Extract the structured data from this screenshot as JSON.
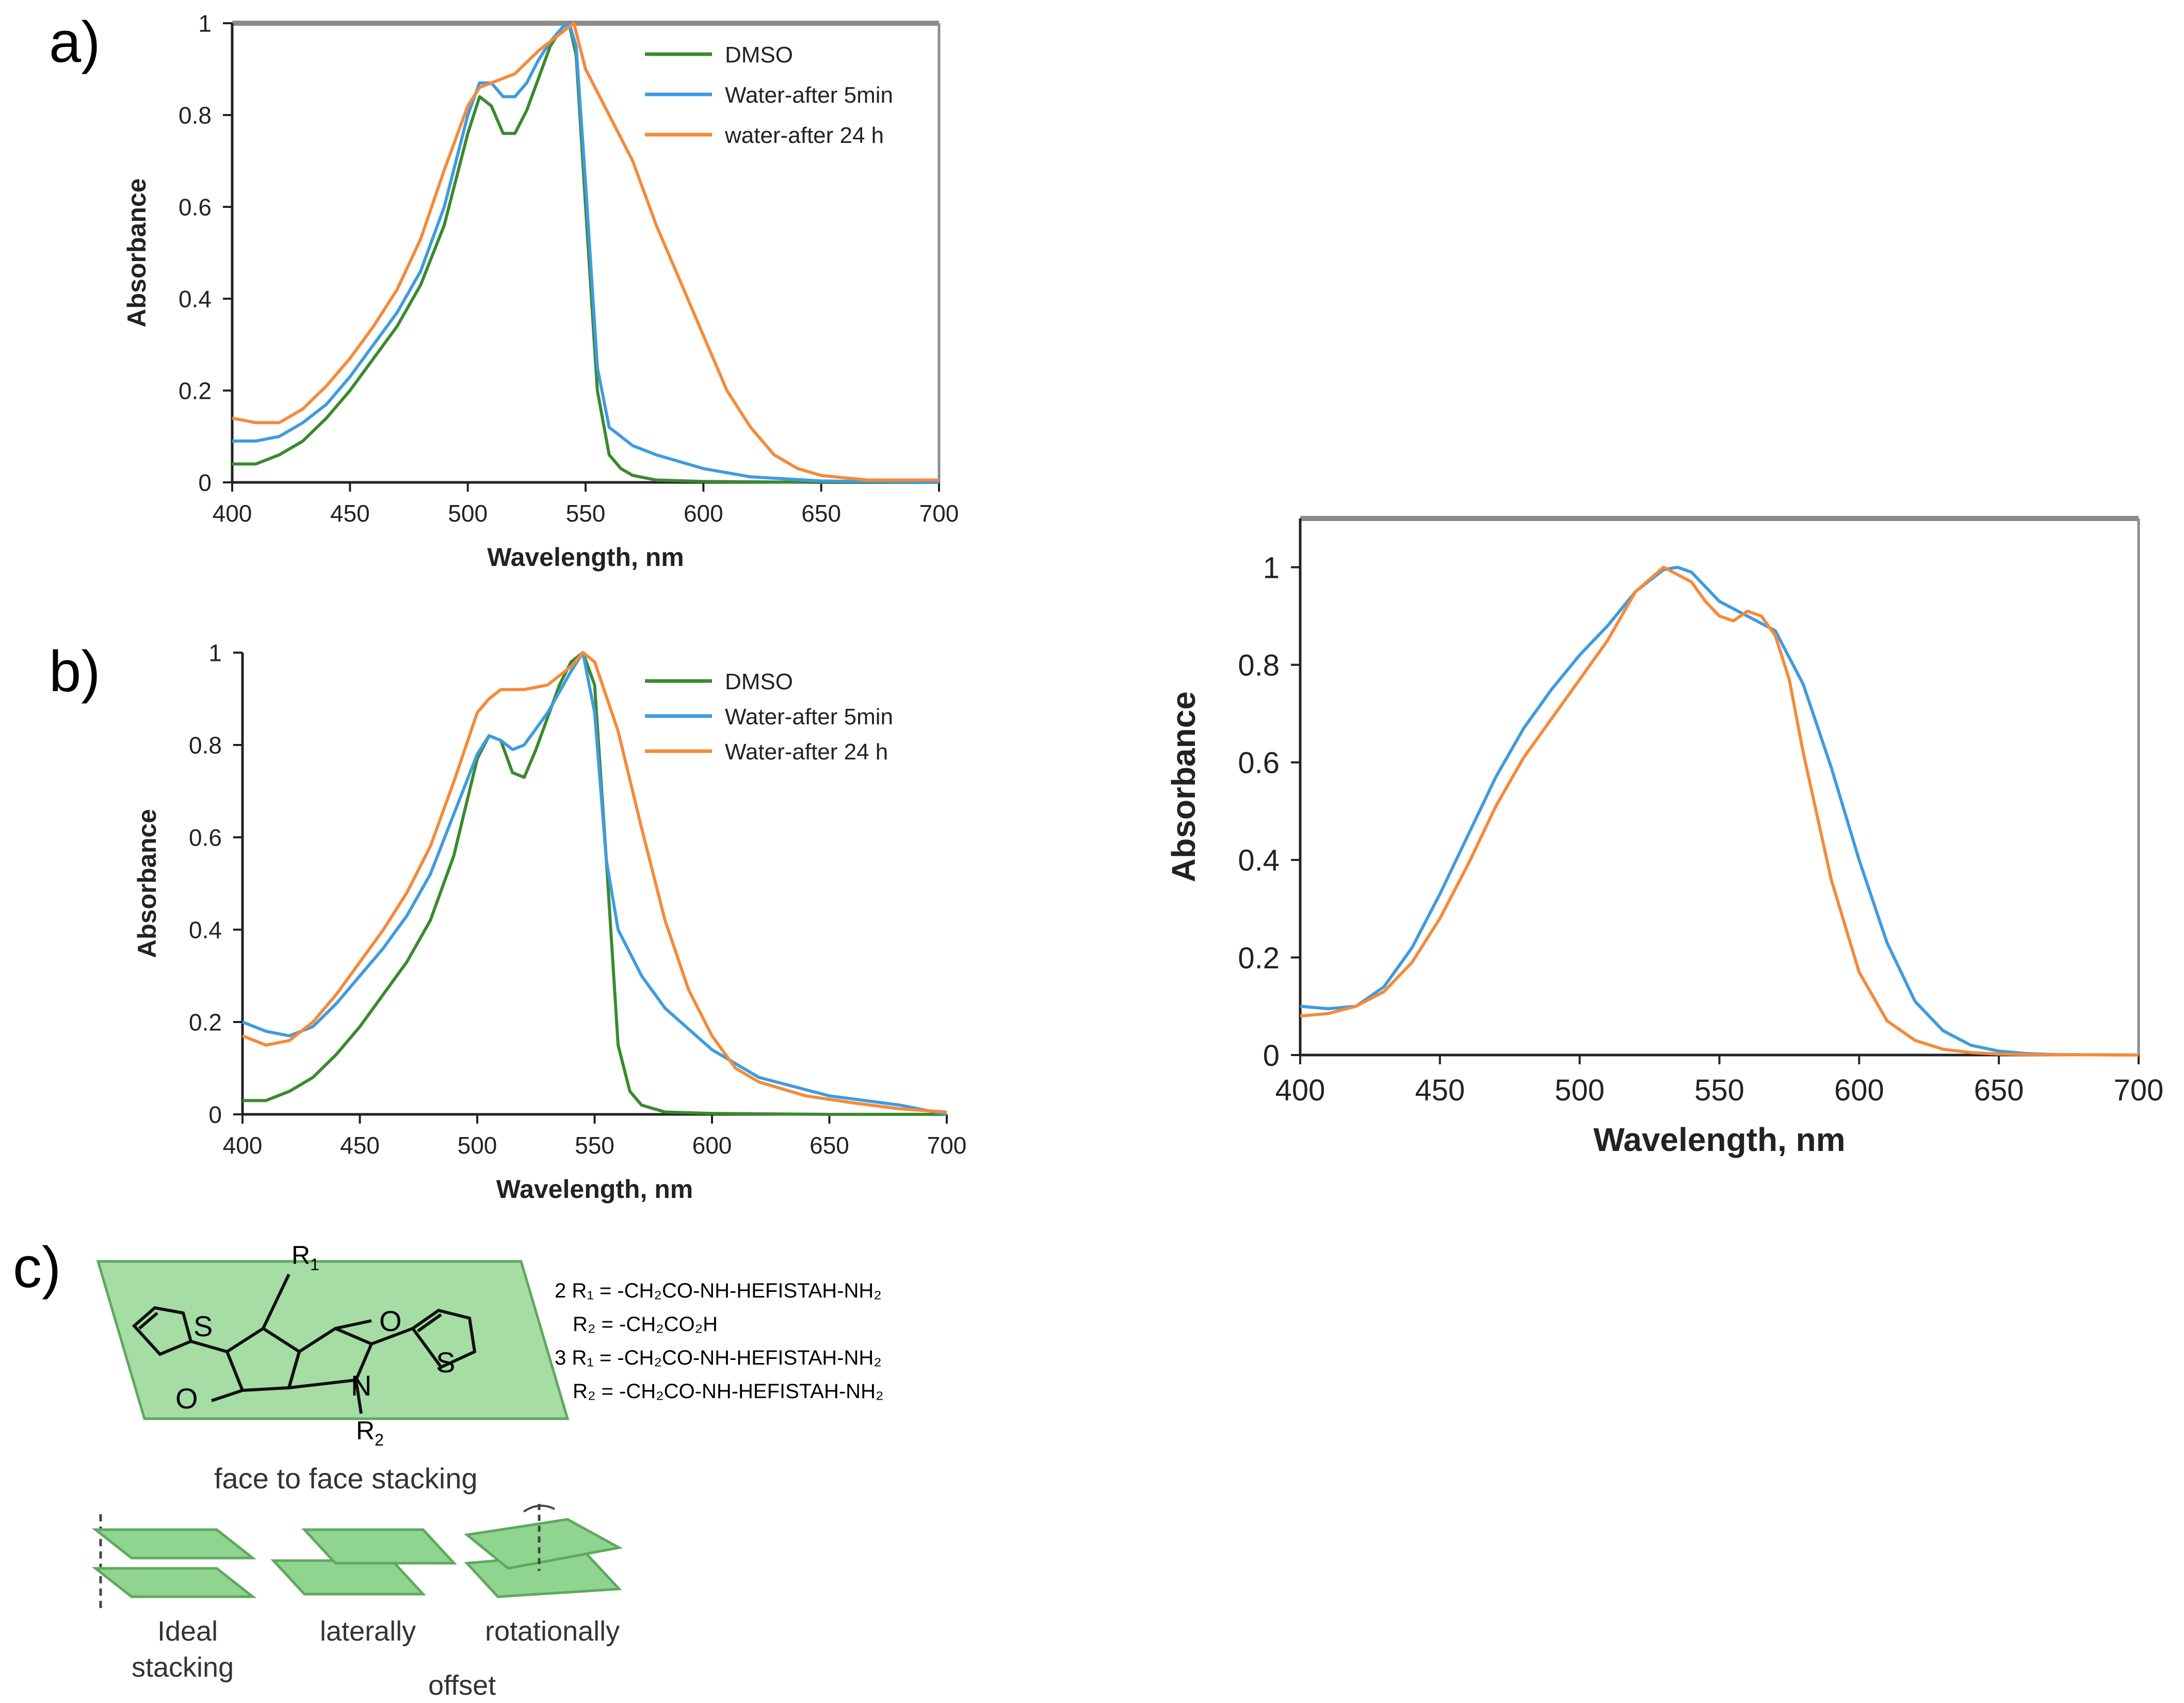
{
  "panel_labels": {
    "a": "a)",
    "b": "b)",
    "c": "c)"
  },
  "colors": {
    "dmso": "#3a8a2e",
    "water5": "#3f9be0",
    "water24": "#f58a3a",
    "frame": "#8c8c8c",
    "plane": "#8fd48f",
    "plane_edge": "#5fa85f"
  },
  "chart_data": [
    {
      "id": "a",
      "type": "line",
      "xlabel": "Wavelength, nm",
      "ylabel": "Absorbance",
      "xlim": [
        400,
        700
      ],
      "ylim": [
        0,
        1
      ],
      "xticks": [
        "400",
        "450",
        "500",
        "550",
        "600",
        "650",
        "700"
      ],
      "yticks": [
        "0",
        "0.2",
        "0.4",
        "0.6",
        "0.8",
        "1"
      ],
      "legend": "top-right",
      "series": [
        {
          "name": "DMSO",
          "color": "dmso",
          "x": [
            400,
            410,
            420,
            430,
            440,
            450,
            460,
            470,
            480,
            490,
            500,
            505,
            510,
            515,
            520,
            525,
            530,
            535,
            540,
            543,
            546,
            550,
            555,
            560,
            565,
            570,
            580,
            600,
            650,
            700
          ],
          "y": [
            0.04,
            0.04,
            0.06,
            0.09,
            0.14,
            0.2,
            0.27,
            0.34,
            0.43,
            0.56,
            0.76,
            0.84,
            0.82,
            0.76,
            0.76,
            0.81,
            0.88,
            0.95,
            0.99,
            1.0,
            0.93,
            0.6,
            0.2,
            0.06,
            0.03,
            0.015,
            0.005,
            0.002,
            0.0,
            0.0
          ]
        },
        {
          "name": "Water-after 5min",
          "color": "water5",
          "x": [
            400,
            410,
            420,
            430,
            440,
            450,
            460,
            470,
            480,
            490,
            500,
            505,
            510,
            515,
            520,
            525,
            530,
            535,
            540,
            543,
            546,
            550,
            555,
            560,
            570,
            580,
            600,
            620,
            650,
            700
          ],
          "y": [
            0.09,
            0.09,
            0.1,
            0.13,
            0.17,
            0.23,
            0.3,
            0.37,
            0.46,
            0.6,
            0.8,
            0.87,
            0.87,
            0.84,
            0.84,
            0.87,
            0.92,
            0.96,
            0.99,
            1.0,
            0.95,
            0.65,
            0.25,
            0.12,
            0.08,
            0.06,
            0.03,
            0.012,
            0.003,
            0.0
          ]
        },
        {
          "name": "water-after 24 h",
          "color": "water24",
          "x": [
            400,
            410,
            420,
            430,
            440,
            450,
            460,
            470,
            480,
            490,
            500,
            505,
            510,
            520,
            530,
            540,
            545,
            550,
            560,
            570,
            580,
            590,
            600,
            610,
            620,
            630,
            640,
            650,
            660,
            670,
            700
          ],
          "y": [
            0.14,
            0.13,
            0.13,
            0.16,
            0.21,
            0.27,
            0.34,
            0.42,
            0.53,
            0.68,
            0.82,
            0.86,
            0.87,
            0.89,
            0.94,
            0.98,
            1.0,
            0.9,
            0.8,
            0.7,
            0.56,
            0.44,
            0.32,
            0.2,
            0.12,
            0.06,
            0.03,
            0.015,
            0.01,
            0.005,
            0.005
          ]
        }
      ]
    },
    {
      "id": "b",
      "type": "line",
      "xlabel": "Wavelength, nm",
      "ylabel": "Absorbance",
      "xlim": [
        400,
        700
      ],
      "ylim": [
        0,
        1
      ],
      "xticks": [
        "400",
        "450",
        "500",
        "550",
        "600",
        "650",
        "700"
      ],
      "yticks": [
        "0",
        "0.2",
        "0.4",
        "0.6",
        "0.8",
        "1"
      ],
      "legend": "top-right",
      "series": [
        {
          "name": "DMSO",
          "color": "dmso",
          "x": [
            400,
            410,
            420,
            430,
            440,
            450,
            460,
            470,
            480,
            490,
            500,
            505,
            510,
            515,
            520,
            525,
            530,
            535,
            540,
            545,
            550,
            555,
            560,
            565,
            570,
            580,
            600,
            650,
            700
          ],
          "y": [
            0.03,
            0.03,
            0.05,
            0.08,
            0.13,
            0.19,
            0.26,
            0.33,
            0.42,
            0.56,
            0.77,
            0.82,
            0.81,
            0.74,
            0.73,
            0.79,
            0.86,
            0.93,
            0.98,
            1.0,
            0.93,
            0.55,
            0.15,
            0.05,
            0.02,
            0.005,
            0.002,
            0.0,
            0.0
          ]
        },
        {
          "name": "Water-after 5min",
          "color": "water5",
          "x": [
            400,
            410,
            420,
            430,
            440,
            450,
            460,
            470,
            480,
            490,
            500,
            505,
            510,
            515,
            520,
            530,
            540,
            545,
            550,
            555,
            560,
            570,
            580,
            600,
            620,
            650,
            680,
            700
          ],
          "y": [
            0.2,
            0.18,
            0.17,
            0.19,
            0.24,
            0.3,
            0.36,
            0.43,
            0.52,
            0.65,
            0.78,
            0.82,
            0.81,
            0.79,
            0.8,
            0.87,
            0.96,
            1.0,
            0.87,
            0.55,
            0.4,
            0.3,
            0.23,
            0.14,
            0.08,
            0.04,
            0.02,
            0.0
          ]
        },
        {
          "name": "Water-after 24 h",
          "color": "water24",
          "x": [
            400,
            410,
            420,
            430,
            440,
            450,
            460,
            470,
            480,
            490,
            500,
            505,
            510,
            520,
            530,
            540,
            545,
            550,
            560,
            570,
            580,
            590,
            600,
            610,
            620,
            640,
            660,
            680,
            700
          ],
          "y": [
            0.17,
            0.15,
            0.16,
            0.2,
            0.26,
            0.33,
            0.4,
            0.48,
            0.58,
            0.72,
            0.87,
            0.9,
            0.92,
            0.92,
            0.93,
            0.97,
            1.0,
            0.98,
            0.83,
            0.62,
            0.42,
            0.27,
            0.17,
            0.1,
            0.07,
            0.04,
            0.025,
            0.012,
            0.005
          ]
        }
      ]
    },
    {
      "id": "right",
      "type": "line",
      "xlabel": "Wavelength, nm",
      "ylabel": "Absorbance",
      "xlim": [
        400,
        700
      ],
      "ylim": [
        0,
        1.1
      ],
      "xticks": [
        "400",
        "450",
        "500",
        "550",
        "600",
        "650",
        "700"
      ],
      "yticks": [
        "0",
        "0.2",
        "0.4",
        "0.6",
        "0.8",
        "1"
      ],
      "series": [
        {
          "name": "blue trace",
          "color": "water5",
          "x": [
            400,
            410,
            420,
            430,
            440,
            450,
            460,
            470,
            480,
            490,
            500,
            510,
            520,
            530,
            535,
            540,
            550,
            560,
            570,
            580,
            590,
            600,
            610,
            620,
            630,
            640,
            650,
            660,
            670,
            700
          ],
          "y": [
            0.1,
            0.095,
            0.1,
            0.14,
            0.22,
            0.33,
            0.45,
            0.57,
            0.67,
            0.75,
            0.82,
            0.88,
            0.95,
            0.995,
            1.0,
            0.99,
            0.93,
            0.9,
            0.87,
            0.76,
            0.59,
            0.4,
            0.23,
            0.11,
            0.05,
            0.02,
            0.008,
            0.003,
            0.001,
            0.0
          ]
        },
        {
          "name": "orange trace",
          "color": "water24",
          "x": [
            400,
            410,
            420,
            430,
            440,
            450,
            460,
            470,
            480,
            490,
            500,
            510,
            520,
            530,
            540,
            545,
            550,
            555,
            560,
            565,
            570,
            575,
            580,
            590,
            600,
            610,
            620,
            630,
            640,
            650,
            660,
            700
          ],
          "y": [
            0.08,
            0.085,
            0.1,
            0.13,
            0.19,
            0.28,
            0.39,
            0.51,
            0.61,
            0.69,
            0.77,
            0.85,
            0.95,
            1.0,
            0.97,
            0.93,
            0.9,
            0.89,
            0.91,
            0.9,
            0.86,
            0.77,
            0.62,
            0.36,
            0.17,
            0.07,
            0.03,
            0.012,
            0.005,
            0.002,
            0.001,
            0.0
          ]
        }
      ]
    }
  ],
  "panel_c": {
    "r1": "R",
    "r1_sub": "1",
    "r2": "R",
    "r2_sub": "2",
    "atom_s": "S",
    "atom_o": "O",
    "atom_n": "N",
    "compound_lines": [
      "2 R₁ = -CH₂CO-NH-HEFISTAH-NH₂",
      "R₂ = -CH₂CO₂H",
      "3 R₁ = -CH₂CO-NH-HEFISTAH-NH₂",
      "R₂ = -CH₂CO-NH-HEFISTAH-NH₂"
    ],
    "face_to_face": "face to face stacking",
    "stack_labels": [
      "Ideal",
      "stacking",
      "laterally",
      "offset",
      "rotationally"
    ]
  }
}
